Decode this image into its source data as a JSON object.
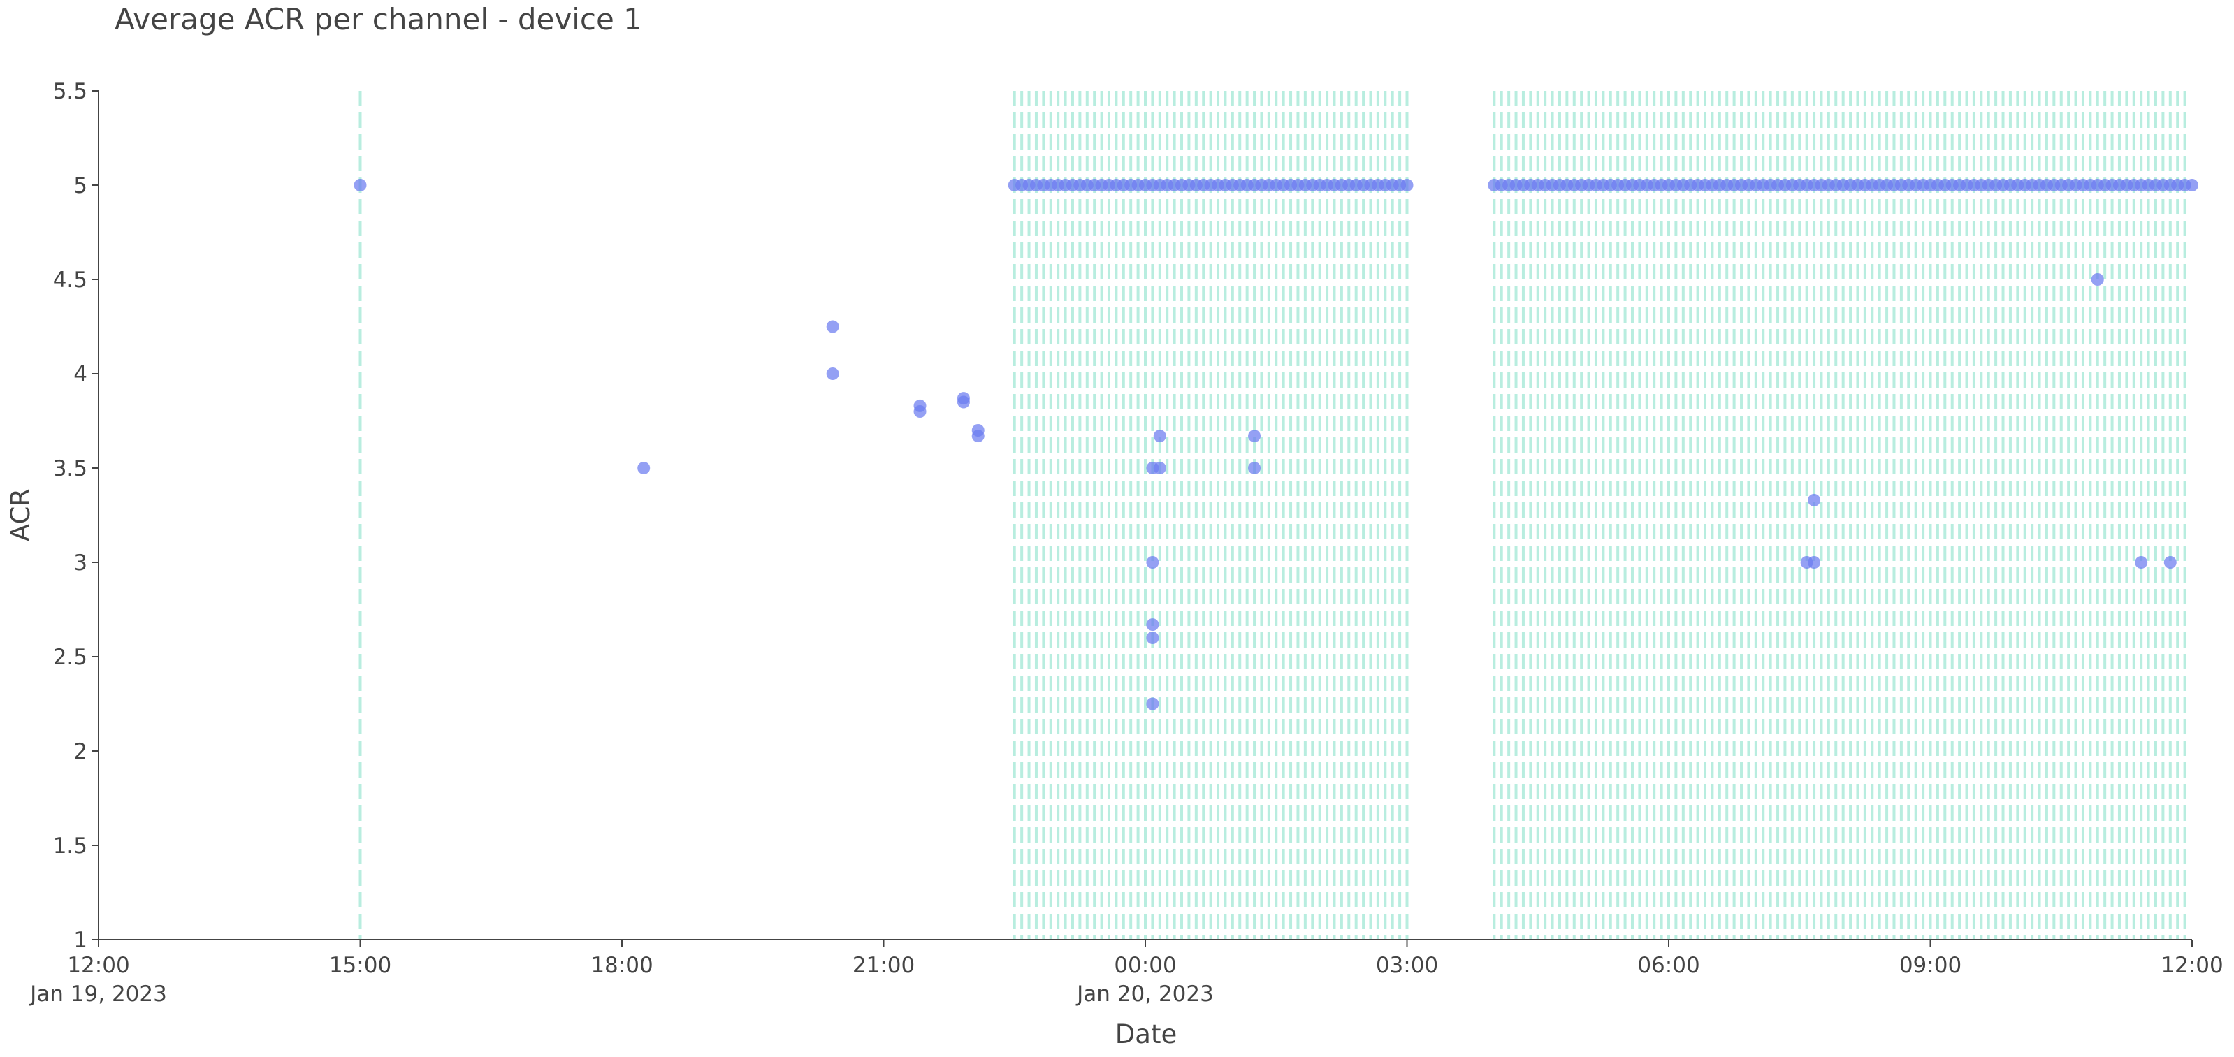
{
  "chart_data": {
    "type": "scatter",
    "title": "Average ACR per channel - device 1",
    "xlabel": "Date",
    "ylabel": "ACR",
    "xlim": [
      "2023-01-19T12:00",
      "2023-01-20T12:00"
    ],
    "ylim": [
      1,
      5.5
    ],
    "x_ticks": [
      {
        "t": "2023-01-19T12:00",
        "label": "12:00",
        "sublabel": "Jan 19, 2023"
      },
      {
        "t": "2023-01-19T15:00",
        "label": "15:00",
        "sublabel": ""
      },
      {
        "t": "2023-01-19T18:00",
        "label": "18:00",
        "sublabel": ""
      },
      {
        "t": "2023-01-19T21:00",
        "label": "21:00",
        "sublabel": ""
      },
      {
        "t": "2023-01-20T00:00",
        "label": "00:00",
        "sublabel": "Jan 20, 2023"
      },
      {
        "t": "2023-01-20T03:00",
        "label": "03:00",
        "sublabel": ""
      },
      {
        "t": "2023-01-20T06:00",
        "label": "06:00",
        "sublabel": ""
      },
      {
        "t": "2023-01-20T09:00",
        "label": "09:00",
        "sublabel": ""
      },
      {
        "t": "2023-01-20T12:00",
        "label": "12:00",
        "sublabel": ""
      }
    ],
    "y_ticks": [
      {
        "v": 1,
        "label": "1"
      },
      {
        "v": 1.5,
        "label": "1.5"
      },
      {
        "v": 2,
        "label": "2"
      },
      {
        "v": 2.5,
        "label": "2.5"
      },
      {
        "v": 3,
        "label": "3"
      },
      {
        "v": 3.5,
        "label": "3.5"
      },
      {
        "v": 4,
        "label": "4"
      },
      {
        "v": 4.5,
        "label": "4.5"
      },
      {
        "v": 5,
        "label": "5"
      },
      {
        "v": 5.5,
        "label": "5.5"
      }
    ],
    "grid": false,
    "legend": "none",
    "colors": {
      "points": "#6b7cf0",
      "event_lines": "#7fe0c6",
      "axis": "#444444"
    },
    "event_line_ranges": [
      {
        "from": "2023-01-19T22:30",
        "to": "2023-01-20T03:00"
      },
      {
        "from": "2023-01-20T04:00",
        "to": "2023-01-20T11:55"
      }
    ],
    "event_lines_single": [
      "2023-01-19T15:00"
    ],
    "five_point_ranges": [
      {
        "from": "2023-01-19T22:30",
        "to": "2023-01-20T03:00"
      },
      {
        "from": "2023-01-20T04:00",
        "to": "2023-01-20T12:00"
      }
    ],
    "points": [
      {
        "x": "2023-01-19T15:00",
        "y": 5
      },
      {
        "x": "2023-01-19T18:15",
        "y": 3.5
      },
      {
        "x": "2023-01-19T20:25",
        "y": 4.25
      },
      {
        "x": "2023-01-19T20:25",
        "y": 4
      },
      {
        "x": "2023-01-19T21:25",
        "y": 3.83
      },
      {
        "x": "2023-01-19T21:25",
        "y": 3.8
      },
      {
        "x": "2023-01-19T21:55",
        "y": 3.87
      },
      {
        "x": "2023-01-19T21:55",
        "y": 3.85
      },
      {
        "x": "2023-01-19T22:05",
        "y": 3.7
      },
      {
        "x": "2023-01-19T22:05",
        "y": 3.67
      },
      {
        "x": "2023-01-20T00:05",
        "y": 3.5
      },
      {
        "x": "2023-01-20T00:10",
        "y": 3.5
      },
      {
        "x": "2023-01-20T00:10",
        "y": 3.67
      },
      {
        "x": "2023-01-20T00:05",
        "y": 3
      },
      {
        "x": "2023-01-20T00:05",
        "y": 2.67
      },
      {
        "x": "2023-01-20T00:05",
        "y": 2.6
      },
      {
        "x": "2023-01-20T00:05",
        "y": 2.25
      },
      {
        "x": "2023-01-20T01:15",
        "y": 3.67
      },
      {
        "x": "2023-01-20T01:15",
        "y": 3.5
      },
      {
        "x": "2023-01-20T07:35",
        "y": 3
      },
      {
        "x": "2023-01-20T07:40",
        "y": 3
      },
      {
        "x": "2023-01-20T07:40",
        "y": 3.33
      },
      {
        "x": "2023-01-20T10:55",
        "y": 4.5
      },
      {
        "x": "2023-01-20T11:25",
        "y": 3
      },
      {
        "x": "2023-01-20T11:45",
        "y": 3
      }
    ]
  }
}
